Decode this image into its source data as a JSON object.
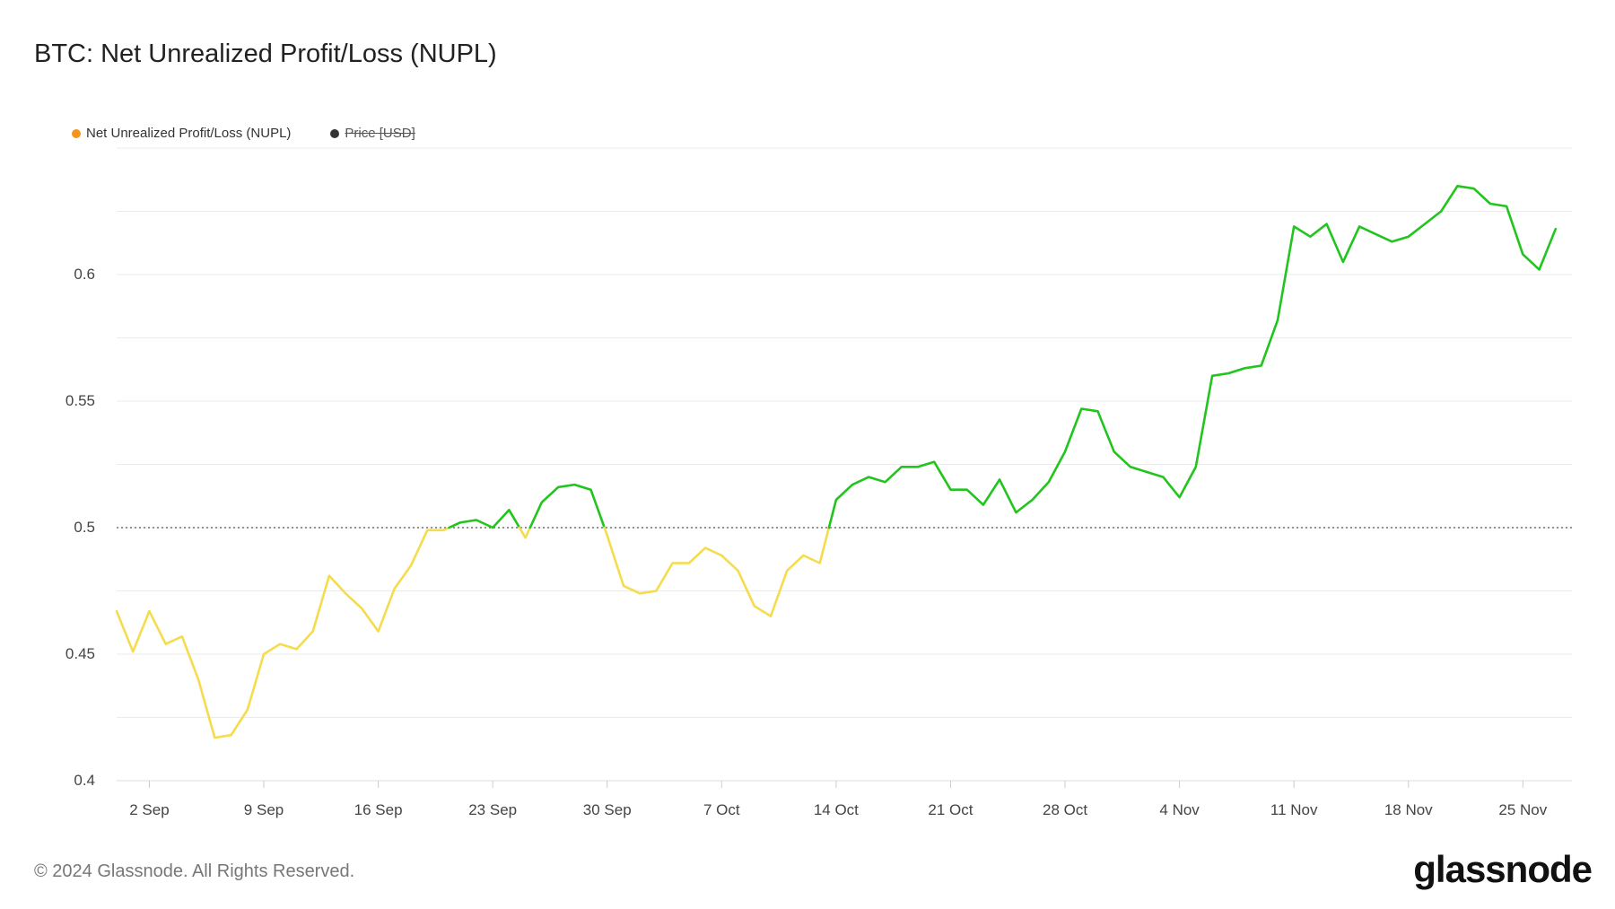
{
  "title": "BTC: Net Unrealized Profit/Loss (NUPL)",
  "legend": [
    {
      "label": "Net Unrealized Profit/Loss (NUPL)",
      "color": "#f7931a",
      "enabled": true
    },
    {
      "label": "Price [USD]",
      "color": "#333333",
      "enabled": false
    }
  ],
  "footer": {
    "copyright": "© 2024 Glassnode. All Rights Reserved.",
    "logo": "glassnode"
  },
  "colors": {
    "below_threshold": "#f5dc4d",
    "above_threshold": "#22c41e",
    "grid": "#ebebeb",
    "threshold_line": "#555555"
  },
  "chart_data": {
    "type": "line",
    "title": "BTC: Net Unrealized Profit/Loss (NUPL)",
    "xlabel": "",
    "ylabel": "",
    "ylim": [
      0.4,
      0.65
    ],
    "yticks": [
      0.4,
      0.45,
      0.5,
      0.55,
      0.6
    ],
    "ytick_labels": [
      "0.4",
      "0.45",
      "0.5",
      "0.55",
      "0.6"
    ],
    "xticks": [
      "2024-09-02",
      "2024-09-09",
      "2024-09-16",
      "2024-09-23",
      "2024-09-30",
      "2024-10-07",
      "2024-10-14",
      "2024-10-21",
      "2024-10-28",
      "2024-11-04",
      "2024-11-11",
      "2024-11-18",
      "2024-11-25"
    ],
    "xtick_labels": [
      "2 Sep",
      "9 Sep",
      "16 Sep",
      "23 Sep",
      "30 Sep",
      "7 Oct",
      "14 Oct",
      "21 Oct",
      "28 Oct",
      "4 Nov",
      "11 Nov",
      "18 Nov",
      "25 Nov"
    ],
    "xlim": [
      "2024-08-31",
      "2024-11-28"
    ],
    "threshold": 0.5,
    "legend_position": "top-left",
    "grid": true,
    "series": [
      {
        "name": "Net Unrealized Profit/Loss (NUPL)",
        "x": [
          "2024-08-31",
          "2024-09-01",
          "2024-09-02",
          "2024-09-03",
          "2024-09-04",
          "2024-09-05",
          "2024-09-06",
          "2024-09-07",
          "2024-09-08",
          "2024-09-09",
          "2024-09-10",
          "2024-09-11",
          "2024-09-12",
          "2024-09-13",
          "2024-09-14",
          "2024-09-15",
          "2024-09-16",
          "2024-09-17",
          "2024-09-18",
          "2024-09-19",
          "2024-09-20",
          "2024-09-21",
          "2024-09-22",
          "2024-09-23",
          "2024-09-24",
          "2024-09-25",
          "2024-09-26",
          "2024-09-27",
          "2024-09-28",
          "2024-09-29",
          "2024-09-30",
          "2024-10-01",
          "2024-10-02",
          "2024-10-03",
          "2024-10-04",
          "2024-10-05",
          "2024-10-06",
          "2024-10-07",
          "2024-10-08",
          "2024-10-09",
          "2024-10-10",
          "2024-10-11",
          "2024-10-12",
          "2024-10-13",
          "2024-10-14",
          "2024-10-15",
          "2024-10-16",
          "2024-10-17",
          "2024-10-18",
          "2024-10-19",
          "2024-10-20",
          "2024-10-21",
          "2024-10-22",
          "2024-10-23",
          "2024-10-24",
          "2024-10-25",
          "2024-10-26",
          "2024-10-27",
          "2024-10-28",
          "2024-10-29",
          "2024-10-30",
          "2024-10-31",
          "2024-11-01",
          "2024-11-02",
          "2024-11-03",
          "2024-11-04",
          "2024-11-05",
          "2024-11-06",
          "2024-11-07",
          "2024-11-08",
          "2024-11-09",
          "2024-11-10",
          "2024-11-11",
          "2024-11-12",
          "2024-11-13",
          "2024-11-14",
          "2024-11-15",
          "2024-11-16",
          "2024-11-17",
          "2024-11-18",
          "2024-11-19",
          "2024-11-20",
          "2024-11-21",
          "2024-11-22",
          "2024-11-23",
          "2024-11-24",
          "2024-11-25",
          "2024-11-26",
          "2024-11-27"
        ],
        "values": [
          0.467,
          0.451,
          0.467,
          0.454,
          0.457,
          0.44,
          0.417,
          0.418,
          0.428,
          0.45,
          0.454,
          0.452,
          0.459,
          0.481,
          0.474,
          0.468,
          0.459,
          0.476,
          0.485,
          0.499,
          0.499,
          0.502,
          0.503,
          0.5,
          0.507,
          0.496,
          0.51,
          0.516,
          0.517,
          0.515,
          0.497,
          0.477,
          0.474,
          0.475,
          0.486,
          0.486,
          0.492,
          0.489,
          0.483,
          0.469,
          0.465,
          0.483,
          0.489,
          0.486,
          0.511,
          0.517,
          0.52,
          0.518,
          0.524,
          0.524,
          0.526,
          0.515,
          0.515,
          0.509,
          0.519,
          0.506,
          0.511,
          0.518,
          0.53,
          0.547,
          0.546,
          0.53,
          0.524,
          0.522,
          0.52,
          0.512,
          0.524,
          0.56,
          0.561,
          0.563,
          0.564,
          0.582,
          0.619,
          0.615,
          0.62,
          0.605,
          0.619,
          0.616,
          0.613,
          0.615,
          0.62,
          0.625,
          0.635,
          0.634,
          0.628,
          0.627,
          0.608,
          0.602,
          0.618
        ]
      }
    ]
  }
}
